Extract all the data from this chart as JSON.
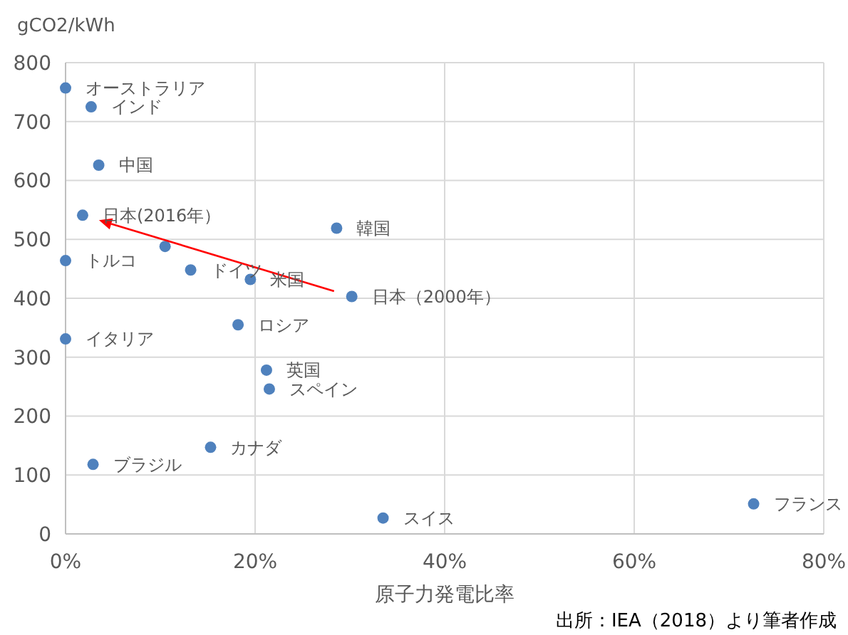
{
  "chart_data": {
    "type": "scatter",
    "xlabel": "原子力発電比率",
    "ylabel": "gCO2/kWh",
    "xlim": [
      0,
      80
    ],
    "xticks": [
      {
        "value": 0,
        "label": "0%"
      },
      {
        "value": 20,
        "label": "20%"
      },
      {
        "value": 40,
        "label": "40%"
      },
      {
        "value": 60,
        "label": "60%"
      },
      {
        "value": 80,
        "label": "80%"
      }
    ],
    "ylim": [
      0,
      800
    ],
    "yticks": [
      0,
      100,
      200,
      300,
      400,
      500,
      600,
      700,
      800
    ],
    "grid": true,
    "marker": "circle",
    "series": [
      {
        "color": "#4f81bd",
        "x": [
          0,
          2.7,
          3.5,
          0,
          10.5,
          13.2,
          19.5,
          28.6,
          0,
          18.2,
          21.2,
          21.5,
          15.3,
          2.9,
          33.5,
          72.6
        ],
        "values": [
          757,
          725,
          626,
          464,
          488,
          448,
          432,
          519,
          331,
          355,
          278,
          246,
          147,
          118,
          27,
          51
        ]
      },
      {
        "color": "#4f81bd",
        "x": [
          30.2,
          1.8
        ],
        "values": [
          403,
          541
        ]
      }
    ],
    "annotations": [
      {
        "text": "オーストラリア",
        "x": 0,
        "y": 757
      },
      {
        "text": "インド",
        "x": 2.7,
        "y": 725
      },
      {
        "text": "中国",
        "x": 3.5,
        "y": 626
      },
      {
        "text": "日本(2016年）",
        "x": 1.8,
        "y": 541
      },
      {
        "text": "トルコ",
        "x": 0,
        "y": 464
      },
      {
        "text": "ドイツ",
        "x": 13.2,
        "y": 448
      },
      {
        "text": "米国",
        "x": 19.5,
        "y": 432
      },
      {
        "text": "韓国",
        "x": 28.6,
        "y": 519
      },
      {
        "text": "日本（2000年）",
        "x": 30.2,
        "y": 403
      },
      {
        "text": "イタリア",
        "x": 0,
        "y": 331
      },
      {
        "text": "ロシア",
        "x": 18.2,
        "y": 355
      },
      {
        "text": "英国",
        "x": 21.2,
        "y": 278
      },
      {
        "text": "スペイン",
        "x": 21.5,
        "y": 246
      },
      {
        "text": "カナダ",
        "x": 15.3,
        "y": 147
      },
      {
        "text": "ブラジル",
        "x": 2.9,
        "y": 118
      },
      {
        "text": "スイス",
        "x": 33.5,
        "y": 27
      },
      {
        "text": "フランス",
        "x": 72.6,
        "y": 51
      },
      "出所：IEA（2018）より筆者作成"
    ]
  }
}
